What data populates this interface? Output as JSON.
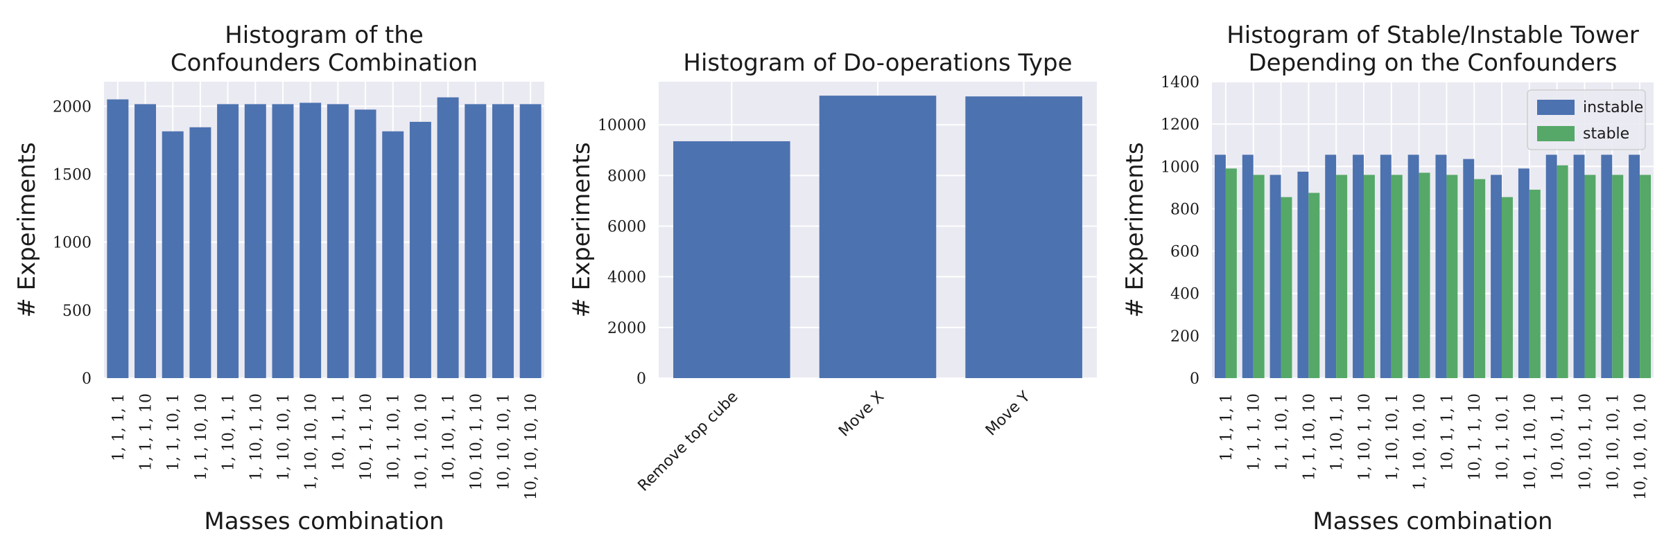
{
  "colors": {
    "blue": "#4c72b0",
    "green": "#55a868",
    "panel_bg": "#eaeaf2",
    "grid": "#ffffff"
  },
  "chart_data": [
    {
      "type": "bar",
      "title_lines": [
        "Histogram of the",
        "Confounders Combination"
      ],
      "xlabel": "Masses combination",
      "ylabel": "# Experiments",
      "ylim": [
        0,
        2180
      ],
      "yticks": [
        0,
        500,
        1000,
        1500,
        2000
      ],
      "categories": [
        "1, 1, 1, 1",
        "1, 1, 1, 10",
        "1, 1, 10, 1",
        "1, 1, 10, 10",
        "1, 10, 1, 1",
        "1, 10, 1, 10",
        "1, 10, 10, 1",
        "1, 10, 10, 10",
        "10, 1, 1, 1",
        "10, 1, 1, 10",
        "10, 1, 10, 1",
        "10, 1, 10, 10",
        "10, 10, 1, 1",
        "10, 10, 1, 10",
        "10, 10, 10, 1",
        "10, 10, 10, 10"
      ],
      "series": [
        {
          "values": [
            2050,
            2015,
            1815,
            1845,
            2015,
            2015,
            2015,
            2025,
            2015,
            1975,
            1815,
            1885,
            2065,
            2015,
            2015,
            2015
          ]
        }
      ]
    },
    {
      "type": "bar",
      "title_lines": [
        "Histogram of Do-operations Type"
      ],
      "xlabel": "",
      "ylabel": "# Experiments",
      "ylim": [
        0,
        11700
      ],
      "yticks": [
        0,
        2000,
        4000,
        6000,
        8000,
        10000
      ],
      "categories": [
        "Remove top cube",
        "Move X",
        "Move Y"
      ],
      "series": [
        {
          "values": [
            9350,
            11150,
            11120
          ]
        }
      ]
    },
    {
      "type": "bar",
      "title_lines": [
        "Histogram of Stable/Instable Tower",
        "Depending on the Confounders"
      ],
      "xlabel": "Masses combination",
      "ylabel": "# Experiments",
      "ylim": [
        0,
        1400
      ],
      "yticks": [
        0,
        200,
        400,
        600,
        800,
        1000,
        1200,
        1400
      ],
      "legend": "top-right",
      "categories": [
        "1, 1, 1, 1",
        "1, 1, 1, 10",
        "1, 1, 10, 1",
        "1, 1, 10, 10",
        "1, 10, 1, 1",
        "1, 10, 1, 10",
        "1, 10, 10, 1",
        "1, 10, 10, 10",
        "10, 1, 1, 1",
        "10, 1, 1, 10",
        "10, 1, 10, 1",
        "10, 1, 10, 10",
        "10, 10, 1, 1",
        "10, 10, 1, 10",
        "10, 10, 10, 1",
        "10, 10, 10, 10"
      ],
      "series": [
        {
          "name": "instable",
          "values": [
            1055,
            1055,
            960,
            975,
            1055,
            1055,
            1055,
            1055,
            1055,
            1035,
            960,
            990,
            1055,
            1055,
            1055,
            1055
          ]
        },
        {
          "name": "stable",
          "values": [
            990,
            960,
            855,
            875,
            960,
            960,
            960,
            970,
            960,
            940,
            855,
            890,
            1005,
            960,
            960,
            960
          ]
        }
      ]
    }
  ]
}
